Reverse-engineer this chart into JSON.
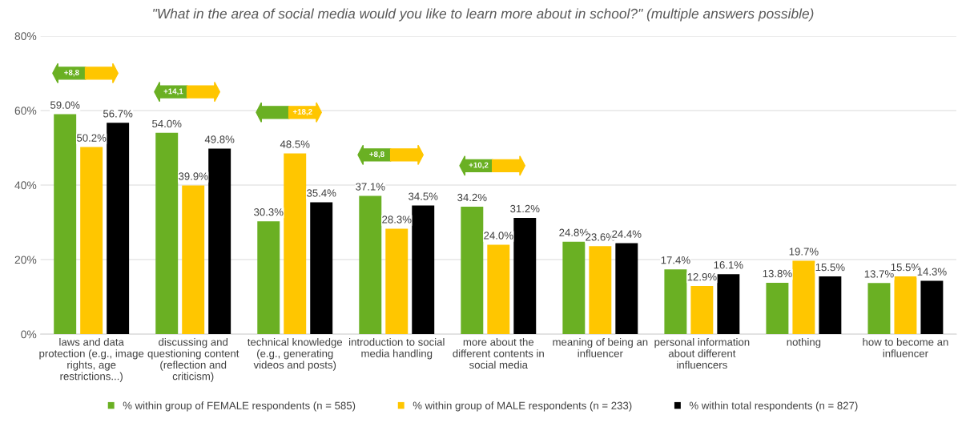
{
  "chart_data": {
    "type": "bar",
    "title": "\"What in the area of social media would you like to learn more about in school?\" (multiple answers possible)",
    "categories": [
      "laws and data\nprotection (e.g., image\nrights, age\nrestrictions...)",
      "discussing and\nquestioning content\n(reflection and\ncriticism)",
      "technical knowledge\n(e.g., generating\nvideos and posts)",
      "introduction to social\nmedia handling",
      "more about the\ndifferent contents in\nsocial media",
      "meaning of being an\ninfluencer",
      "personal information\nabout different\ninfluencers",
      "nothing",
      "how to become an\ninfluencer"
    ],
    "series": [
      {
        "name": "% within group of FEMALE respondents (n = 585)",
        "color": "#6ab023",
        "values": [
          59.0,
          54.0,
          30.3,
          37.1,
          34.2,
          24.8,
          17.4,
          13.8,
          13.7
        ],
        "value_labels": [
          "59.0%",
          "54.0%",
          "30.3%",
          "37.1%",
          "34.2%",
          "24.8%",
          "17.4%",
          "13.8%",
          "13.7%"
        ]
      },
      {
        "name": "% within group of MALE respondents (n = 233)",
        "color": "#ffc600",
        "values": [
          50.2,
          39.9,
          48.5,
          28.3,
          24.0,
          23.6,
          12.9,
          19.7,
          15.5
        ],
        "value_labels": [
          "50.2%",
          "39.9%",
          "48.5%",
          "28.3%",
          "24.0%",
          "23.6%",
          "12.9%",
          "19.7%",
          "15.5%"
        ]
      },
      {
        "name": "% within total respondents (n = 827)",
        "color": "#000000",
        "values": [
          56.7,
          49.8,
          35.4,
          34.5,
          31.2,
          24.4,
          16.1,
          15.5,
          14.3
        ],
        "value_labels": [
          "56.7%",
          "49.8%",
          "35.4%",
          "34.5%",
          "31.2%",
          "24.4%",
          "16.1%",
          "15.5%",
          "14.3%"
        ]
      }
    ],
    "ylim": [
      0,
      80
    ],
    "yticks": [
      {
        "value": 0,
        "label": "0%"
      },
      {
        "value": 20,
        "label": "20%"
      },
      {
        "value": 40,
        "label": "40%"
      },
      {
        "value": 60,
        "label": "60%"
      },
      {
        "value": 80,
        "label": "80%"
      }
    ],
    "grid": "y",
    "legend": "bottom",
    "annotations": [
      "+8,8",
      "+14,1",
      "+18,2",
      "+8,8",
      "+10,2"
    ]
  }
}
